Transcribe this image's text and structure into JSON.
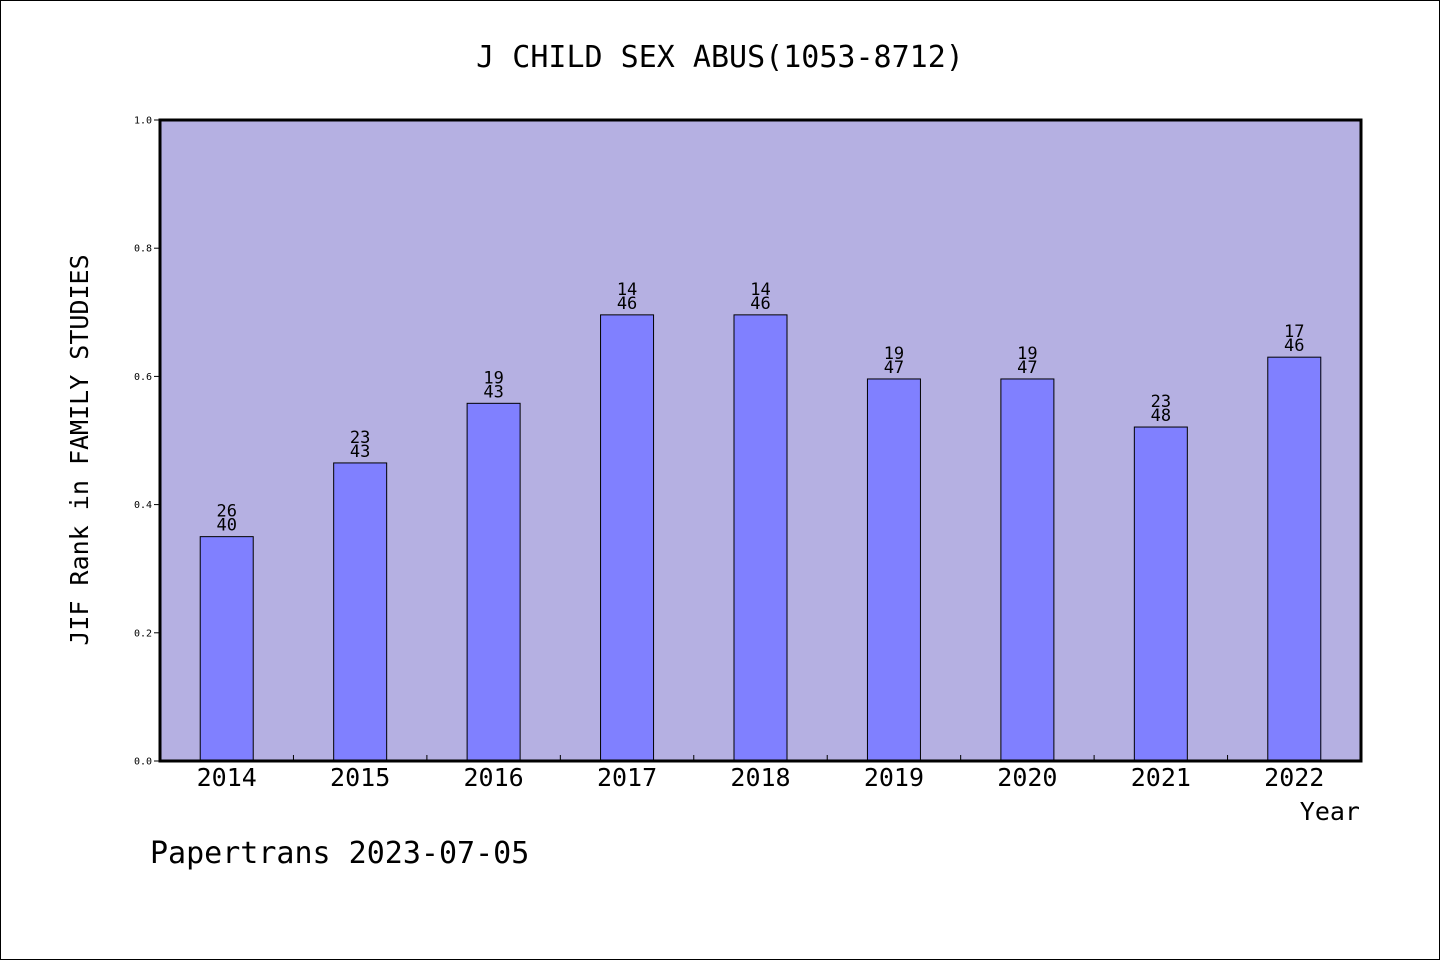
{
  "chart_data": {
    "type": "bar",
    "title": "J CHILD SEX ABUS(1053-8712)",
    "xlabel": "Year",
    "ylabel": "JIF Rank in FAMILY STUDIES",
    "categories": [
      "2014",
      "2015",
      "2016",
      "2017",
      "2018",
      "2019",
      "2020",
      "2021",
      "2022"
    ],
    "values": [
      0.35,
      0.465,
      0.558,
      0.696,
      0.696,
      0.596,
      0.596,
      0.521,
      0.63
    ],
    "bar_labels": [
      {
        "rank": "26",
        "total": "40"
      },
      {
        "rank": "23",
        "total": "43"
      },
      {
        "rank": "19",
        "total": "43"
      },
      {
        "rank": "14",
        "total": "46"
      },
      {
        "rank": "14",
        "total": "46"
      },
      {
        "rank": "19",
        "total": "47"
      },
      {
        "rank": "19",
        "total": "47"
      },
      {
        "rank": "23",
        "total": "48"
      },
      {
        "rank": "17",
        "total": "46"
      }
    ],
    "ylim": [
      0,
      1.0
    ],
    "yticks": [
      "0.0",
      "0.2",
      "0.4",
      "0.6",
      "0.8",
      "1.0"
    ],
    "ytick_values": [
      0,
      0.2,
      0.4,
      0.6,
      0.8,
      1.0
    ],
    "grid": false,
    "legend": "none",
    "colors": {
      "plot_background": "#b5b0e2",
      "bar_fill": "#8080ff",
      "bar_stroke": "#000000",
      "axis": "#000000"
    }
  },
  "footer": {
    "credit": "Papertrans 2023-07-05"
  }
}
